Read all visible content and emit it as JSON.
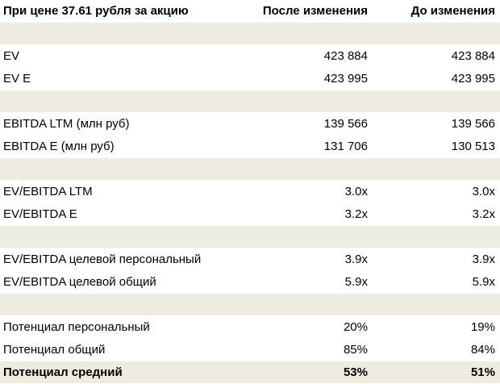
{
  "header": {
    "label": "При цене 37.61  рубля за акцию",
    "after": "После изменения",
    "before": "До изменения"
  },
  "rows": [
    {
      "label": "",
      "after": "",
      "before": ""
    },
    {
      "label": "EV",
      "after": "423 884",
      "before": "423 884"
    },
    {
      "label": "EV E",
      "after": "423 995",
      "before": "423 995"
    },
    {
      "label": "",
      "after": "",
      "before": ""
    },
    {
      "label": "EBITDA LTM (млн руб)",
      "after": "139 566",
      "before": "139 566"
    },
    {
      "label": "EBITDA E (млн руб)",
      "after": "131 706",
      "before": "130 513"
    },
    {
      "label": "",
      "after": "",
      "before": ""
    },
    {
      "label": "EV/EBITDA LTM",
      "after": "3.0x",
      "before": "3.0x"
    },
    {
      "label": "EV/EBITDA E",
      "after": "3.2x",
      "before": "3.2x"
    },
    {
      "label": "",
      "after": "",
      "before": ""
    },
    {
      "label": "EV/EBITDA целевой персональный",
      "after": "3.9x",
      "before": "3.9x"
    },
    {
      "label": "EV/EBITDA целевой общий",
      "after": "5.9x",
      "before": "5.9x"
    },
    {
      "label": "",
      "after": "",
      "before": ""
    },
    {
      "label": "Потенциал персональный",
      "after": "20%",
      "before": "19%"
    },
    {
      "label": "Потенциал общий",
      "after": "85%",
      "before": "84%"
    },
    {
      "label": "Потенциал средний",
      "after": "53%",
      "before": "51%"
    }
  ],
  "colors": {
    "shaded_row": "#eeece1",
    "plain_row": "#ffffff",
    "text": "#000000"
  }
}
